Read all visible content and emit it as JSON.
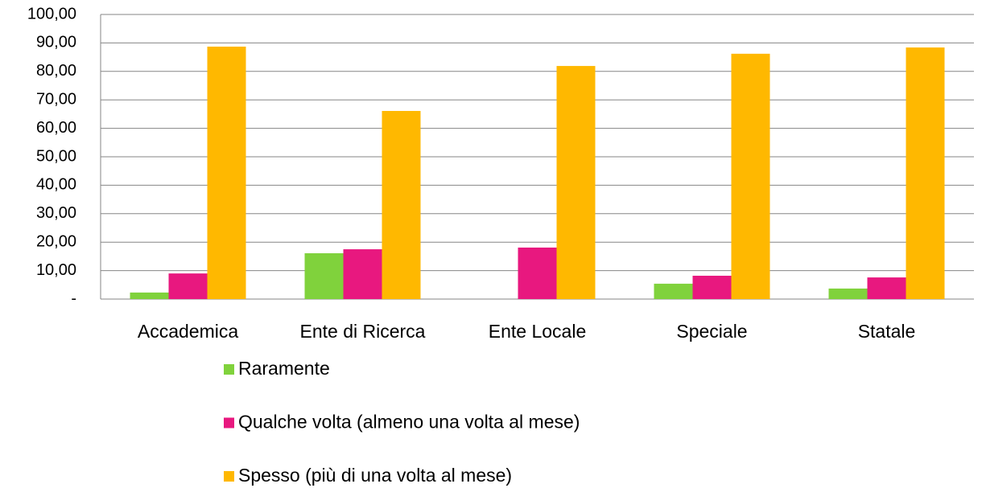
{
  "chart_data": {
    "type": "bar",
    "categories": [
      "Accademica",
      "Ente di Ricerca",
      "Ente Locale",
      "Speciale",
      "Statale"
    ],
    "series": [
      {
        "name": "Raramente",
        "color": "#80d23c",
        "values": [
          2.3,
          16.1,
          0,
          5.4,
          3.7
        ]
      },
      {
        "name": "Qualche volta (almeno una volta al mese)",
        "color": "#e8187f",
        "values": [
          9.0,
          17.5,
          18.1,
          8.2,
          7.6
        ]
      },
      {
        "name": "Spesso (più di una volta al mese)",
        "color": "#ffb800",
        "values": [
          88.7,
          66.1,
          81.9,
          86.2,
          88.4
        ]
      }
    ],
    "ylim": [
      0,
      100
    ],
    "yticks": [
      {
        "value": 0,
        "label": "-"
      },
      {
        "value": 10,
        "label": "10,00"
      },
      {
        "value": 20,
        "label": "20,00"
      },
      {
        "value": 30,
        "label": "30,00"
      },
      {
        "value": 40,
        "label": "40,00"
      },
      {
        "value": 50,
        "label": "50,00"
      },
      {
        "value": 60,
        "label": "60,00"
      },
      {
        "value": 70,
        "label": "70,00"
      },
      {
        "value": 80,
        "label": "80,00"
      },
      {
        "value": 90,
        "label": "90,00"
      },
      {
        "value": 100,
        "label": "100,00"
      }
    ],
    "grid": true,
    "legend": "bottom"
  }
}
